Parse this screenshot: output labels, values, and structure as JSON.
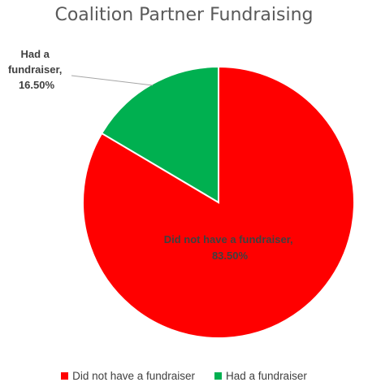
{
  "chart_data": {
    "type": "pie",
    "title": "Coalition Partner Fundraising",
    "categories": [
      "Did not have a fundraiser",
      "Had a fundraiser"
    ],
    "values": [
      83.5,
      16.5
    ],
    "value_labels": [
      "83.50%",
      "16.50%"
    ],
    "colors": [
      "#FF0000",
      "#00B050"
    ],
    "legend": {
      "placement": "bottom",
      "entries": [
        "Did not have a fundraiser",
        "Had a fundraiser"
      ]
    },
    "data_labels": [
      {
        "category": "Did not have a fundraiser,",
        "value": "83.50%",
        "position": "inside",
        "color": "#404040"
      },
      {
        "category": "Had a",
        "category_line2": "fundraiser,",
        "value": "16.50%",
        "position": "outside-with-leader",
        "color": "#404040"
      }
    ]
  }
}
